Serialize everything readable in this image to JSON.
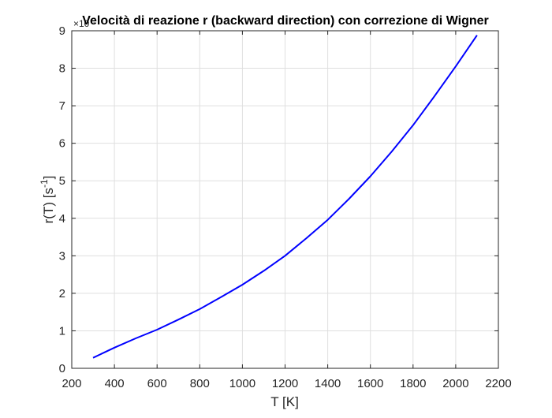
{
  "chart_data": {
    "type": "line",
    "title": "Velocità di reazione r (backward direction) con correzione di Wigner",
    "xlabel": "T [K]",
    "ylabel": "r(T) [s",
    "ylabel_exponent": "-1",
    "ylabel_close": "]",
    "y_multiplier_base": "×10",
    "y_multiplier_exponent": "?",
    "xlim": [
      200,
      2200
    ],
    "ylim": [
      0,
      9
    ],
    "xticks": [
      200,
      400,
      600,
      800,
      1000,
      1200,
      1400,
      1600,
      1800,
      2000,
      2200
    ],
    "yticks": [
      0,
      1,
      2,
      3,
      4,
      5,
      6,
      7,
      8,
      9
    ],
    "grid": true,
    "series": [
      {
        "color": "#0000ff",
        "x": [
          300,
          400,
          500,
          600,
          700,
          800,
          900,
          1000,
          1100,
          1200,
          1300,
          1400,
          1500,
          1600,
          1700,
          1800,
          1900,
          2000,
          2100
        ],
        "y": [
          0.28,
          0.55,
          0.8,
          1.03,
          1.3,
          1.58,
          1.9,
          2.23,
          2.6,
          3.0,
          3.47,
          3.96,
          4.52,
          5.12,
          5.78,
          6.48,
          7.25,
          8.05,
          8.88
        ]
      }
    ]
  }
}
